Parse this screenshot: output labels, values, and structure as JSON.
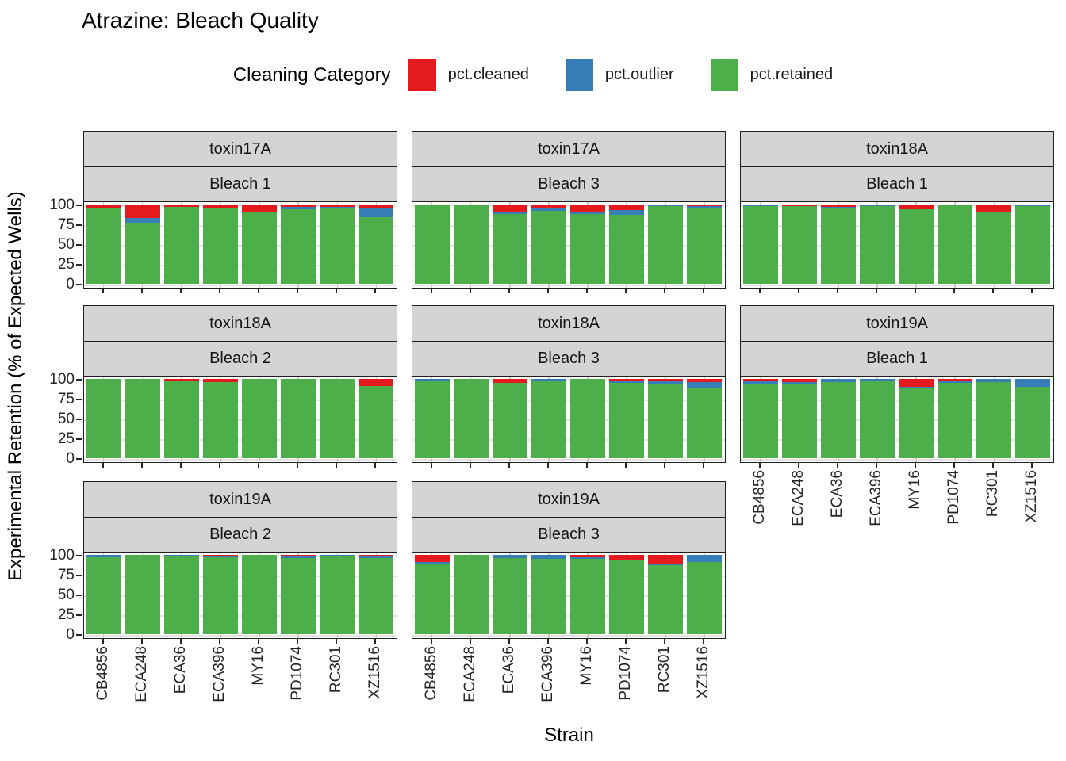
{
  "chart_data": {
    "type": "bar",
    "stacked": true,
    "title": "Atrazine: Bleach Quality",
    "xlabel": "Strain",
    "ylabel": "Experimental Retention (% of Expected Wells)",
    "ylim": [
      0,
      100
    ],
    "yticks": [
      100,
      75,
      50,
      25,
      0
    ],
    "grid": true,
    "categories": [
      "CB4856",
      "ECA248",
      "ECA36",
      "ECA396",
      "MY16",
      "PD1074",
      "RC301",
      "XZ1516"
    ],
    "legend": {
      "title": "Cleaning Category",
      "position": "top",
      "entries": [
        {
          "label": "pct.cleaned",
          "color": "#E41A1C"
        },
        {
          "label": "pct.outlier",
          "color": "#377EB8"
        },
        {
          "label": "pct.retained",
          "color": "#4DAF4A"
        }
      ]
    },
    "colors": {
      "pct_cleaned": "#E41A1C",
      "pct_outlier": "#377EB8",
      "pct_retained": "#4DAF4A",
      "strip_fill": "#d4d4d4",
      "panel_border": "#1f1f1f"
    },
    "facets": [
      {
        "row": 1,
        "col": 1,
        "toxin": "toxin17A",
        "bleach": "Bleach 1",
        "series": [
          {
            "name": "pct.cleaned",
            "values": [
              4,
              17,
              3,
              4,
              10,
              3,
              3,
              4
            ]
          },
          {
            "name": "pct.outlier",
            "values": [
              0,
              6,
              0,
              0,
              0,
              3,
              2,
              12
            ]
          },
          {
            "name": "pct.retained",
            "values": [
              96,
              77,
              97,
              96,
              90,
              94,
              95,
              84
            ]
          }
        ]
      },
      {
        "row": 1,
        "col": 2,
        "toxin": "toxin17A",
        "bleach": "Bleach 3",
        "series": [
          {
            "name": "pct.cleaned",
            "values": [
              0,
              0,
              10,
              5,
              10,
              7,
              0,
              2
            ]
          },
          {
            "name": "pct.outlier",
            "values": [
              0,
              0,
              2,
              3,
              2,
              6,
              2,
              2
            ]
          },
          {
            "name": "pct.retained",
            "values": [
              100,
              100,
              88,
              92,
              88,
              87,
              98,
              96
            ]
          }
        ]
      },
      {
        "row": 1,
        "col": 3,
        "toxin": "toxin18A",
        "bleach": "Bleach 1",
        "series": [
          {
            "name": "pct.cleaned",
            "values": [
              0,
              2,
              3,
              0,
              6,
              0,
              9,
              0
            ]
          },
          {
            "name": "pct.outlier",
            "values": [
              2,
              0,
              2,
              2,
              0,
              0,
              0,
              2
            ]
          },
          {
            "name": "pct.retained",
            "values": [
              98,
              98,
              95,
              98,
              94,
              100,
              91,
              98
            ]
          }
        ]
      },
      {
        "row": 2,
        "col": 1,
        "toxin": "toxin18A",
        "bleach": "Bleach 2",
        "series": [
          {
            "name": "pct.cleaned",
            "values": [
              0,
              0,
              2,
              4,
              0,
              0,
              0,
              9
            ]
          },
          {
            "name": "pct.outlier",
            "values": [
              0,
              0,
              0,
              0,
              0,
              0,
              0,
              0
            ]
          },
          {
            "name": "pct.retained",
            "values": [
              100,
              100,
              98,
              96,
              100,
              100,
              100,
              91
            ]
          }
        ]
      },
      {
        "row": 2,
        "col": 2,
        "toxin": "toxin18A",
        "bleach": "Bleach 3",
        "series": [
          {
            "name": "pct.cleaned",
            "values": [
              0,
              0,
              5,
              0,
              0,
              3,
              3,
              4
            ]
          },
          {
            "name": "pct.outlier",
            "values": [
              2,
              0,
              0,
              2,
              0,
              2,
              4,
              7
            ]
          },
          {
            "name": "pct.retained",
            "values": [
              98,
              100,
              95,
              98,
              100,
              95,
              93,
              89
            ]
          }
        ]
      },
      {
        "row": 2,
        "col": 3,
        "toxin": "toxin19A",
        "bleach": "Bleach 1",
        "series": [
          {
            "name": "pct.cleaned",
            "values": [
              3,
              4,
              0,
              0,
              10,
              2,
              0,
              0
            ]
          },
          {
            "name": "pct.outlier",
            "values": [
              3,
              2,
              4,
              2,
              2,
              3,
              4,
              10
            ]
          },
          {
            "name": "pct.retained",
            "values": [
              94,
              94,
              96,
              98,
              88,
              95,
              96,
              90
            ]
          }
        ]
      },
      {
        "row": 3,
        "col": 1,
        "toxin": "toxin19A",
        "bleach": "Bleach 2",
        "series": [
          {
            "name": "pct.cleaned",
            "values": [
              0,
              0,
              0,
              2,
              0,
              2,
              0,
              2
            ]
          },
          {
            "name": "pct.outlier",
            "values": [
              3,
              0,
              2,
              1,
              0,
              2,
              2,
              2
            ]
          },
          {
            "name": "pct.retained",
            "values": [
              97,
              100,
              98,
              97,
              100,
              96,
              98,
              96
            ]
          }
        ]
      },
      {
        "row": 3,
        "col": 2,
        "toxin": "toxin19A",
        "bleach": "Bleach 3",
        "series": [
          {
            "name": "pct.cleaned",
            "values": [
              9,
              0,
              0,
              0,
              3,
              6,
              11,
              0
            ]
          },
          {
            "name": "pct.outlier",
            "values": [
              2,
              0,
              4,
              5,
              2,
              0,
              2,
              9
            ]
          },
          {
            "name": "pct.retained",
            "values": [
              89,
              100,
              96,
              95,
              95,
              94,
              87,
              91
            ]
          }
        ]
      }
    ]
  }
}
